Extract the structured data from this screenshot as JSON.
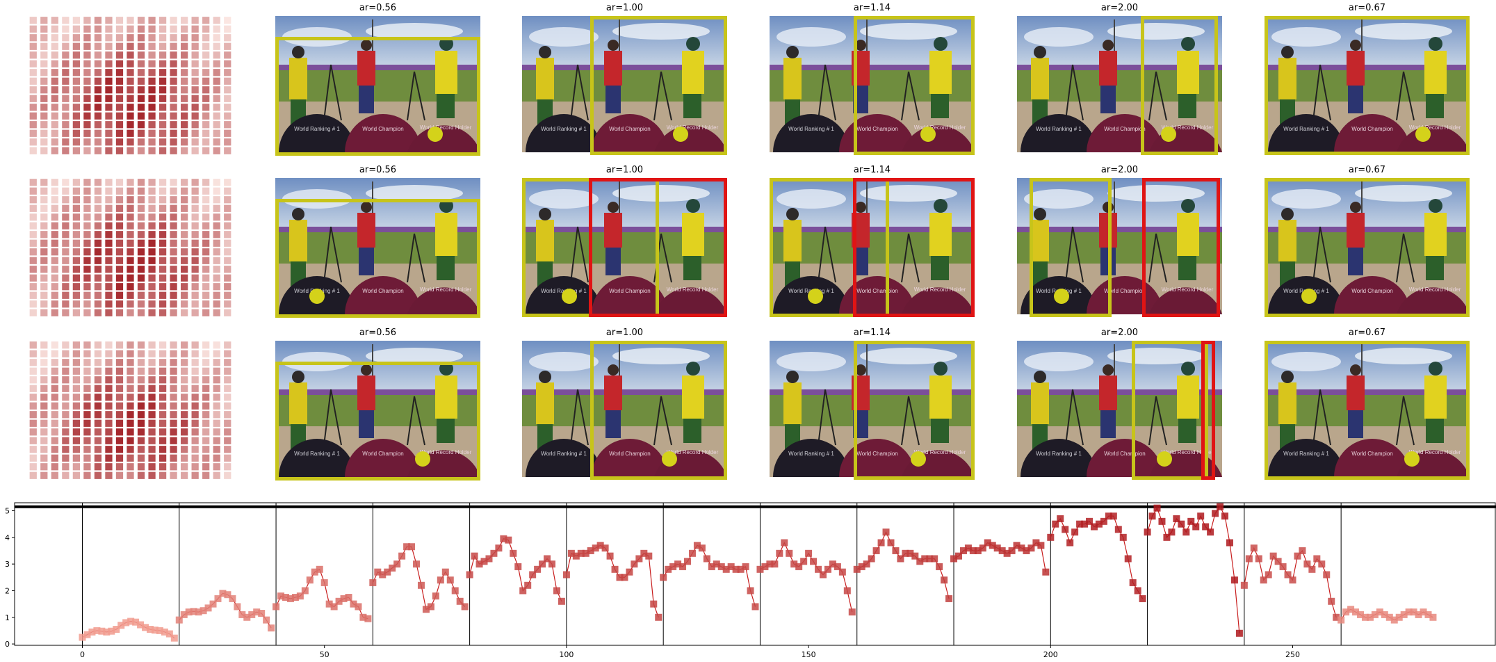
{
  "panel_titles": [
    "ar=0.56",
    "ar=1.00",
    "ar=1.14",
    "ar=2.00",
    "ar=0.67"
  ],
  "photo_texts": [
    "World Ranking # 1",
    "World Champion",
    "World Record Holder"
  ],
  "colors": {
    "green_box": "#c7c41a",
    "red_box": "#e01414",
    "dot": "#d4d21a",
    "heatmap_base": "#d9503c",
    "series": "#c81e1e"
  },
  "chart_data": [
    {
      "type": "line",
      "title": "",
      "xlabel": "",
      "ylabel": "",
      "xlim": [
        -14,
        292
      ],
      "ylim": [
        -0.05,
        5.3
      ],
      "x_ticks": [
        0,
        50,
        100,
        150,
        200,
        250
      ],
      "y_ticks": [
        0,
        1,
        2,
        3,
        4,
        5
      ],
      "vertical_lines": [
        0,
        20,
        40,
        60,
        80,
        100,
        120,
        140,
        160,
        180,
        200,
        220,
        240,
        260
      ],
      "horizontal_line": 5.15,
      "grid": false,
      "segments": [
        [
          0.25,
          0.35,
          0.45,
          0.5,
          0.48,
          0.45,
          0.48,
          0.55,
          0.7,
          0.8,
          0.85,
          0.82,
          0.72,
          0.62,
          0.55,
          0.52,
          0.5,
          0.45,
          0.38,
          0.22
        ],
        [
          0.9,
          1.1,
          1.2,
          1.22,
          1.2,
          1.25,
          1.35,
          1.5,
          1.7,
          1.9,
          1.85,
          1.7,
          1.4,
          1.1,
          1.0,
          1.1,
          1.2,
          1.15,
          0.9,
          0.6
        ],
        [
          1.4,
          1.8,
          1.75,
          1.7,
          1.75,
          1.8,
          2.0,
          2.4,
          2.7,
          2.8,
          2.3,
          1.5,
          1.4,
          1.6,
          1.7,
          1.75,
          1.5,
          1.4,
          1.0,
          0.95
        ],
        [
          2.3,
          2.7,
          2.6,
          2.7,
          2.85,
          3.0,
          3.3,
          3.65,
          3.65,
          3.0,
          2.2,
          1.3,
          1.4,
          1.8,
          2.4,
          2.7,
          2.4,
          2.0,
          1.6,
          1.4
        ],
        [
          2.6,
          3.3,
          3.0,
          3.1,
          3.2,
          3.4,
          3.6,
          3.95,
          3.9,
          3.4,
          2.9,
          2.0,
          2.2,
          2.6,
          2.8,
          3.0,
          3.2,
          3.0,
          2.0,
          1.6
        ],
        [
          2.6,
          3.4,
          3.3,
          3.4,
          3.4,
          3.5,
          3.6,
          3.7,
          3.6,
          3.3,
          2.8,
          2.5,
          2.5,
          2.7,
          3.0,
          3.2,
          3.4,
          3.3,
          1.5,
          1.0
        ],
        [
          2.5,
          2.8,
          2.9,
          3.0,
          2.9,
          3.1,
          3.4,
          3.7,
          3.6,
          3.2,
          2.9,
          3.0,
          2.9,
          2.8,
          2.9,
          2.8,
          2.8,
          2.9,
          2.0,
          1.4
        ],
        [
          2.8,
          2.9,
          3.0,
          3.0,
          3.4,
          3.8,
          3.4,
          3.0,
          2.9,
          3.1,
          3.4,
          3.1,
          2.8,
          2.6,
          2.8,
          3.0,
          2.9,
          2.7,
          2.0,
          1.2
        ],
        [
          2.8,
          2.9,
          3.0,
          3.2,
          3.5,
          3.8,
          4.2,
          3.8,
          3.5,
          3.2,
          3.4,
          3.4,
          3.3,
          3.1,
          3.2,
          3.2,
          3.2,
          2.9,
          2.4,
          1.7
        ],
        [
          3.2,
          3.3,
          3.5,
          3.6,
          3.5,
          3.5,
          3.6,
          3.8,
          3.7,
          3.6,
          3.5,
          3.4,
          3.5,
          3.7,
          3.6,
          3.5,
          3.6,
          3.8,
          3.7,
          2.7
        ],
        [
          4.0,
          4.5,
          4.7,
          4.3,
          3.8,
          4.2,
          4.5,
          4.5,
          4.6,
          4.4,
          4.5,
          4.6,
          4.8,
          4.8,
          4.3,
          4.0,
          3.2,
          2.3,
          2.0,
          1.7
        ],
        [
          4.2,
          4.8,
          5.1,
          4.6,
          4.0,
          4.2,
          4.7,
          4.5,
          4.2,
          4.6,
          4.4,
          4.8,
          4.4,
          4.2,
          4.9,
          5.15,
          4.8,
          3.8,
          2.4,
          0.4
        ],
        [
          2.2,
          3.2,
          3.6,
          3.2,
          2.4,
          2.6,
          3.3,
          3.1,
          2.9,
          2.6,
          2.4,
          3.3,
          3.5,
          3.0,
          2.8,
          3.2,
          3.0,
          2.6,
          1.6,
          1.0
        ],
        [
          0.9,
          1.2,
          1.3,
          1.2,
          1.1,
          1.0,
          1.0,
          1.1,
          1.2,
          1.1,
          1.0,
          0.9,
          1.0,
          1.1,
          1.2,
          1.2,
          1.1,
          1.2,
          1.1,
          1.0
        ]
      ]
    }
  ]
}
